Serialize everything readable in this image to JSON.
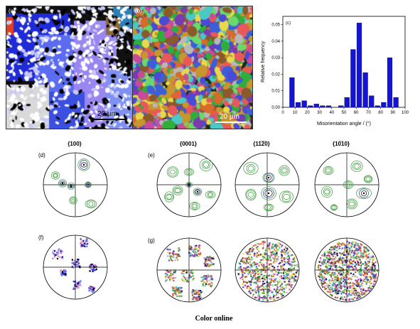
{
  "panels": {
    "a": {
      "label": "(a)",
      "scale": "20 µm"
    },
    "b": {
      "label": "(b)",
      "scale": "20 µm"
    },
    "c": {
      "label": "(c)"
    },
    "d": {
      "label": "(d)",
      "title": "{100}"
    },
    "e": {
      "label": "(e)",
      "titles": [
        "{0001}",
        "{11̅2̅0}",
        "{10̅10}"
      ]
    },
    "f": {
      "label": "(f)"
    },
    "g": {
      "label": "(g)"
    }
  },
  "caption": "Color online",
  "chart_data": {
    "type": "bar",
    "xlabel": "Misorientation angle / (°)",
    "ylabel": "Relative frequency",
    "xlim": [
      0,
      100
    ],
    "ylim": [
      0,
      0.055
    ],
    "xticks": [
      0,
      10,
      20,
      30,
      40,
      50,
      60,
      70,
      80,
      90,
      100
    ],
    "yticks": [
      0.0,
      0.01,
      0.02,
      0.03,
      0.04,
      0.05
    ],
    "bar_color": "#1414d8",
    "x": [
      7.5,
      12.5,
      17.5,
      22.5,
      27.5,
      32.5,
      37.5,
      42.5,
      47.5,
      52.5,
      57.5,
      62.5,
      67.5,
      72.5,
      77.5,
      82.5,
      87.5,
      92.5
    ],
    "values": [
      0.018,
      0.003,
      0.004,
      0.001,
      0.002,
      0.001,
      0.001,
      0.0,
      0.001,
      0.006,
      0.035,
      0.051,
      0.021,
      0.007,
      0.001,
      0.003,
      0.03,
      0.006
    ]
  }
}
